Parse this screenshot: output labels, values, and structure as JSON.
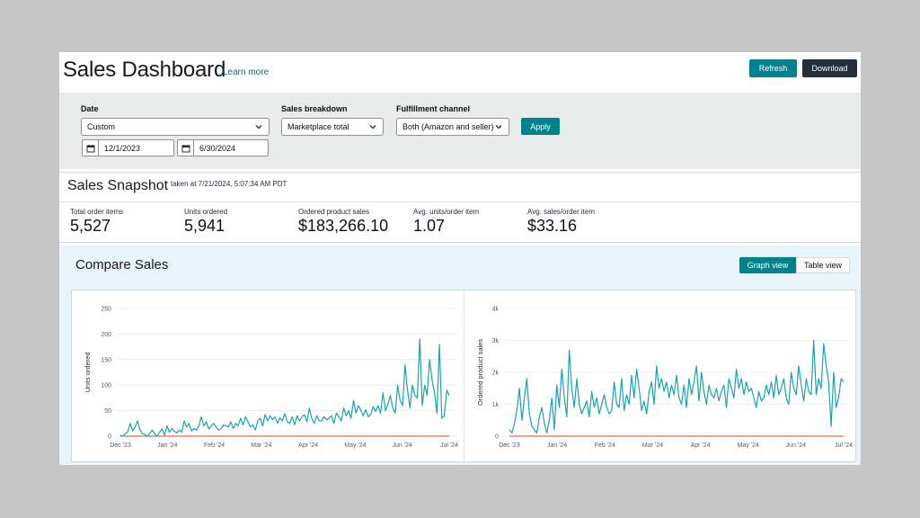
{
  "header": {
    "title": "Sales Dashboard",
    "learn_more": "Learn more",
    "refresh_label": "Refresh",
    "download_label": "Download"
  },
  "filters": {
    "date_label": "Date",
    "date_select": "Custom",
    "start_date": "12/1/2023",
    "end_date": "6/30/2024",
    "breakdown_label": "Sales breakdown",
    "breakdown_select": "Marketplace total",
    "channel_label": "Fulfillment channel",
    "channel_select": "Both (Amazon and seller)",
    "apply_label": "Apply"
  },
  "snapshot": {
    "title": "Sales Snapshot",
    "taken_at": "taken at 7/21/2024, 5:07:34 AM PDT",
    "metrics": [
      {
        "label": "Total order items",
        "value": "5,527"
      },
      {
        "label": "Units ordered",
        "value": "5,941"
      },
      {
        "label": "Ordered product sales",
        "value": "$183,266.10"
      },
      {
        "label": "Avg. units/order item",
        "value": "1.07"
      },
      {
        "label": "Avg. sales/order item",
        "value": "$33.16"
      }
    ]
  },
  "compare": {
    "title": "Compare Sales",
    "graph_view": "Graph view",
    "table_view": "Table view"
  },
  "colors": {
    "accent": "#00818e",
    "series_line": "#1aa2b0",
    "baseline": "#d9472b"
  },
  "chart_data": [
    {
      "type": "line",
      "ylabel": "Units ordered",
      "ylim": [
        0,
        250
      ],
      "yticks": [
        "0",
        "50",
        "100",
        "150",
        "200",
        "250"
      ],
      "xticks": [
        "Dec '23",
        "Jan '24",
        "Feb '24",
        "Mar '24",
        "Apr '24",
        "May '24",
        "Jun '24",
        "Jul '24"
      ],
      "grid": true,
      "series": [
        {
          "values": [
            2,
            0,
            5,
            8,
            25,
            10,
            18,
            30,
            12,
            5,
            3,
            0,
            6,
            12,
            4,
            0,
            8,
            14,
            2,
            20,
            8,
            15,
            10,
            6,
            12,
            8,
            30,
            18,
            25,
            10,
            15,
            12,
            20,
            38,
            20,
            28,
            14,
            20,
            25,
            18,
            12,
            15,
            22,
            20,
            18,
            28,
            15,
            25,
            20,
            35,
            22,
            38,
            28,
            18,
            22,
            12,
            30,
            35,
            20,
            42,
            30,
            40,
            32,
            38,
            25,
            36,
            30,
            44,
            28,
            25,
            38,
            22,
            40,
            30,
            38,
            42,
            28,
            55,
            35,
            25,
            40,
            30,
            30,
            38,
            32,
            35,
            40,
            25,
            45,
            38,
            30,
            55,
            40,
            50,
            35,
            70,
            45,
            60,
            50,
            40,
            52,
            38,
            42,
            58,
            48,
            60,
            45,
            85,
            50,
            62,
            80,
            55,
            45,
            100,
            70,
            60,
            140,
            90,
            55,
            100,
            80,
            75,
            190,
            60,
            100,
            80,
            150,
            110,
            85,
            45,
            180,
            35,
            40,
            90,
            80
          ]
        }
      ]
    },
    {
      "type": "line",
      "ylabel": "Ordered product sales",
      "ylim": [
        0,
        4000
      ],
      "yticks": [
        "0",
        "1k",
        "2k",
        "3k",
        "4k"
      ],
      "xticks": [
        "Dec '23",
        "Jan '24",
        "Feb '24",
        "Mar '24",
        "Apr '24",
        "May '24",
        "Jun '24",
        "Jul '24"
      ],
      "grid": true,
      "series": [
        {
          "values": [
            200,
            100,
            400,
            800,
            1500,
            500,
            1200,
            1800,
            700,
            300,
            200,
            100,
            600,
            900,
            400,
            100,
            500,
            1200,
            200,
            1600,
            900,
            2100,
            1200,
            600,
            2700,
            1500,
            900,
            1800,
            1000,
            700,
            900,
            1100,
            600,
            1400,
            900,
            1200,
            700,
            1000,
            1300,
            900,
            700,
            800,
            1700,
            1000,
            900,
            1800,
            800,
            1300,
            1000,
            1900,
            1200,
            2100,
            1500,
            800,
            1100,
            700,
            1400,
            1700,
            1000,
            2200,
            1500,
            1800,
            1400,
            1700,
            1200,
            1600,
            1300,
            1900,
            1200,
            1000,
            1600,
            900,
            1800,
            1300,
            1700,
            2200,
            1100,
            2000,
            1400,
            1000,
            1600,
            1300,
            1200,
            1500,
            1100,
            1400,
            1600,
            900,
            1800,
            1500,
            1200,
            2100,
            1500,
            1800,
            1300,
            1700,
            1400,
            1500,
            1200,
            900,
            1400,
            1100,
            1200,
            1600,
            1300,
            1700,
            1200,
            1900,
            1300,
            1500,
            1800,
            1200,
            1000,
            2000,
            1500,
            1300,
            2200,
            1600,
            1100,
            1800,
            1400,
            1300,
            3000,
            1300,
            1800,
            1500,
            2900,
            2200,
            1700,
            300,
            2000,
            900,
            1200,
            1800,
            1700
          ]
        }
      ]
    }
  ]
}
